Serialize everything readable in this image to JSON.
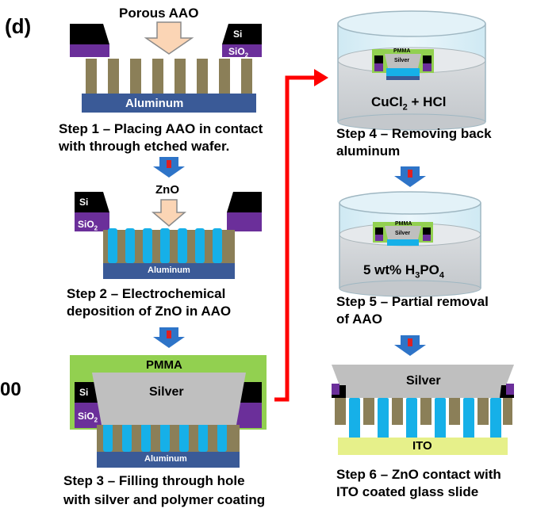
{
  "panel_label": "(d)",
  "edge_fragment": "00",
  "steps": [
    {
      "line1": "Step 1 – Placing AAO in contact",
      "line2": "with through etched wafer."
    },
    {
      "line1": "Step 2 – Electrochemical",
      "line2": "deposition of ZnO in AAO"
    },
    {
      "line1": "Step 3 – Filling through hole",
      "line2": "with silver and polymer coating"
    },
    {
      "line1": "Step 4 – Removing back",
      "line2": "aluminum"
    },
    {
      "line1": "Step 5 – Partial removal",
      "line2": "of AAO"
    },
    {
      "line1": "Step 6 – ZnO contact with",
      "line2": "ITO coated glass slide"
    }
  ],
  "labels": {
    "porous_aao": "Porous AAO",
    "zno": "ZnO",
    "si": "Si",
    "sio2_base": "SiO",
    "sio2_sub": "2",
    "aluminum": "Aluminum",
    "pmma": "PMMA",
    "silver": "Silver",
    "ito": "ITO",
    "bath1_a": "CuCl",
    "bath1_sub": "2",
    "bath1_b": " + HCl",
    "bath2_a": "5 wt% H",
    "bath2_sub1": "3",
    "bath2_b": "PO",
    "bath2_sub2": "4"
  },
  "colors": {
    "aao": "#8b7f58",
    "aluminum": "#3a5a97",
    "zno": "#16b0e8",
    "si": "#000000",
    "sio2": "#6b2f9a",
    "pmma": "#92d050",
    "silver": "#bfbfbf",
    "ito": "#e6f08a",
    "step_arrow": "#2e74c8",
    "red_arrow": "#ff0000",
    "input_arrow": "#fbd5b5"
  }
}
